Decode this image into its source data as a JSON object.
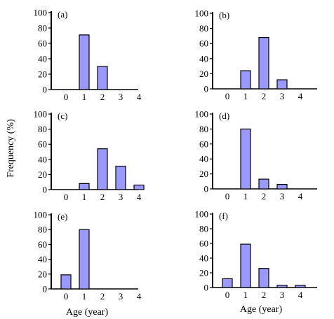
{
  "figure": {
    "ylabel": "Frequency (%)",
    "xlabel": "Age (year)"
  },
  "colors": {
    "bar_fill": "#9999ff",
    "bar_stroke": "#000000",
    "axis": "#000000"
  },
  "chart_data": [
    {
      "type": "bar",
      "panel": "(a)",
      "categories": [
        "0",
        "1",
        "2",
        "3",
        "4"
      ],
      "values": [
        0,
        71,
        30,
        0,
        0
      ],
      "ylim": [
        0,
        100
      ],
      "yticks": [
        "0",
        "20",
        "40",
        "60",
        "80",
        "100"
      ],
      "xticks": [
        "0",
        "1",
        "2",
        "3",
        "4"
      ],
      "grid": false
    },
    {
      "type": "bar",
      "panel": "(b)",
      "categories": [
        "0",
        "1",
        "2",
        "3",
        "4"
      ],
      "values": [
        0,
        24,
        68,
        12,
        0
      ],
      "ylim": [
        0,
        100
      ],
      "yticks": [
        "0",
        "20",
        "40",
        "60",
        "80",
        "100"
      ],
      "xticks": [
        "0",
        "1",
        "2",
        "3",
        "4"
      ],
      "grid": false
    },
    {
      "type": "bar",
      "panel": "(c)",
      "categories": [
        "0",
        "1",
        "2",
        "3",
        "4"
      ],
      "values": [
        0,
        8,
        54,
        31,
        6
      ],
      "ylim": [
        0,
        100
      ],
      "yticks": [
        "0",
        "20",
        "40",
        "60",
        "80",
        "100"
      ],
      "xticks": [
        "0",
        "1",
        "2",
        "3",
        "4"
      ],
      "grid": false
    },
    {
      "type": "bar",
      "panel": "(d)",
      "categories": [
        "0",
        "1",
        "2",
        "3",
        "4"
      ],
      "values": [
        0,
        80,
        13,
        6,
        0
      ],
      "ylim": [
        0,
        100
      ],
      "yticks": [
        "0",
        "20",
        "40",
        "60",
        "80",
        "100"
      ],
      "xticks": [
        "0",
        "1",
        "2",
        "3",
        "4"
      ],
      "grid": false
    },
    {
      "type": "bar",
      "panel": "(e)",
      "categories": [
        "0",
        "1",
        "2",
        "3",
        "4"
      ],
      "values": [
        19,
        80,
        0,
        0,
        0
      ],
      "ylim": [
        0,
        100
      ],
      "yticks": [
        "0",
        "20",
        "40",
        "60",
        "80",
        "100"
      ],
      "xticks": [
        "0",
        "1",
        "2",
        "3",
        "4"
      ],
      "grid": false
    },
    {
      "type": "bar",
      "panel": "(f)",
      "categories": [
        "0",
        "1",
        "2",
        "3",
        "4"
      ],
      "values": [
        12,
        59,
        26,
        3,
        3
      ],
      "ylim": [
        0,
        100
      ],
      "yticks": [
        "0",
        "20",
        "40",
        "60",
        "80",
        "100"
      ],
      "xticks": [
        "0",
        "1",
        "2",
        "3",
        "4"
      ],
      "grid": false
    }
  ]
}
